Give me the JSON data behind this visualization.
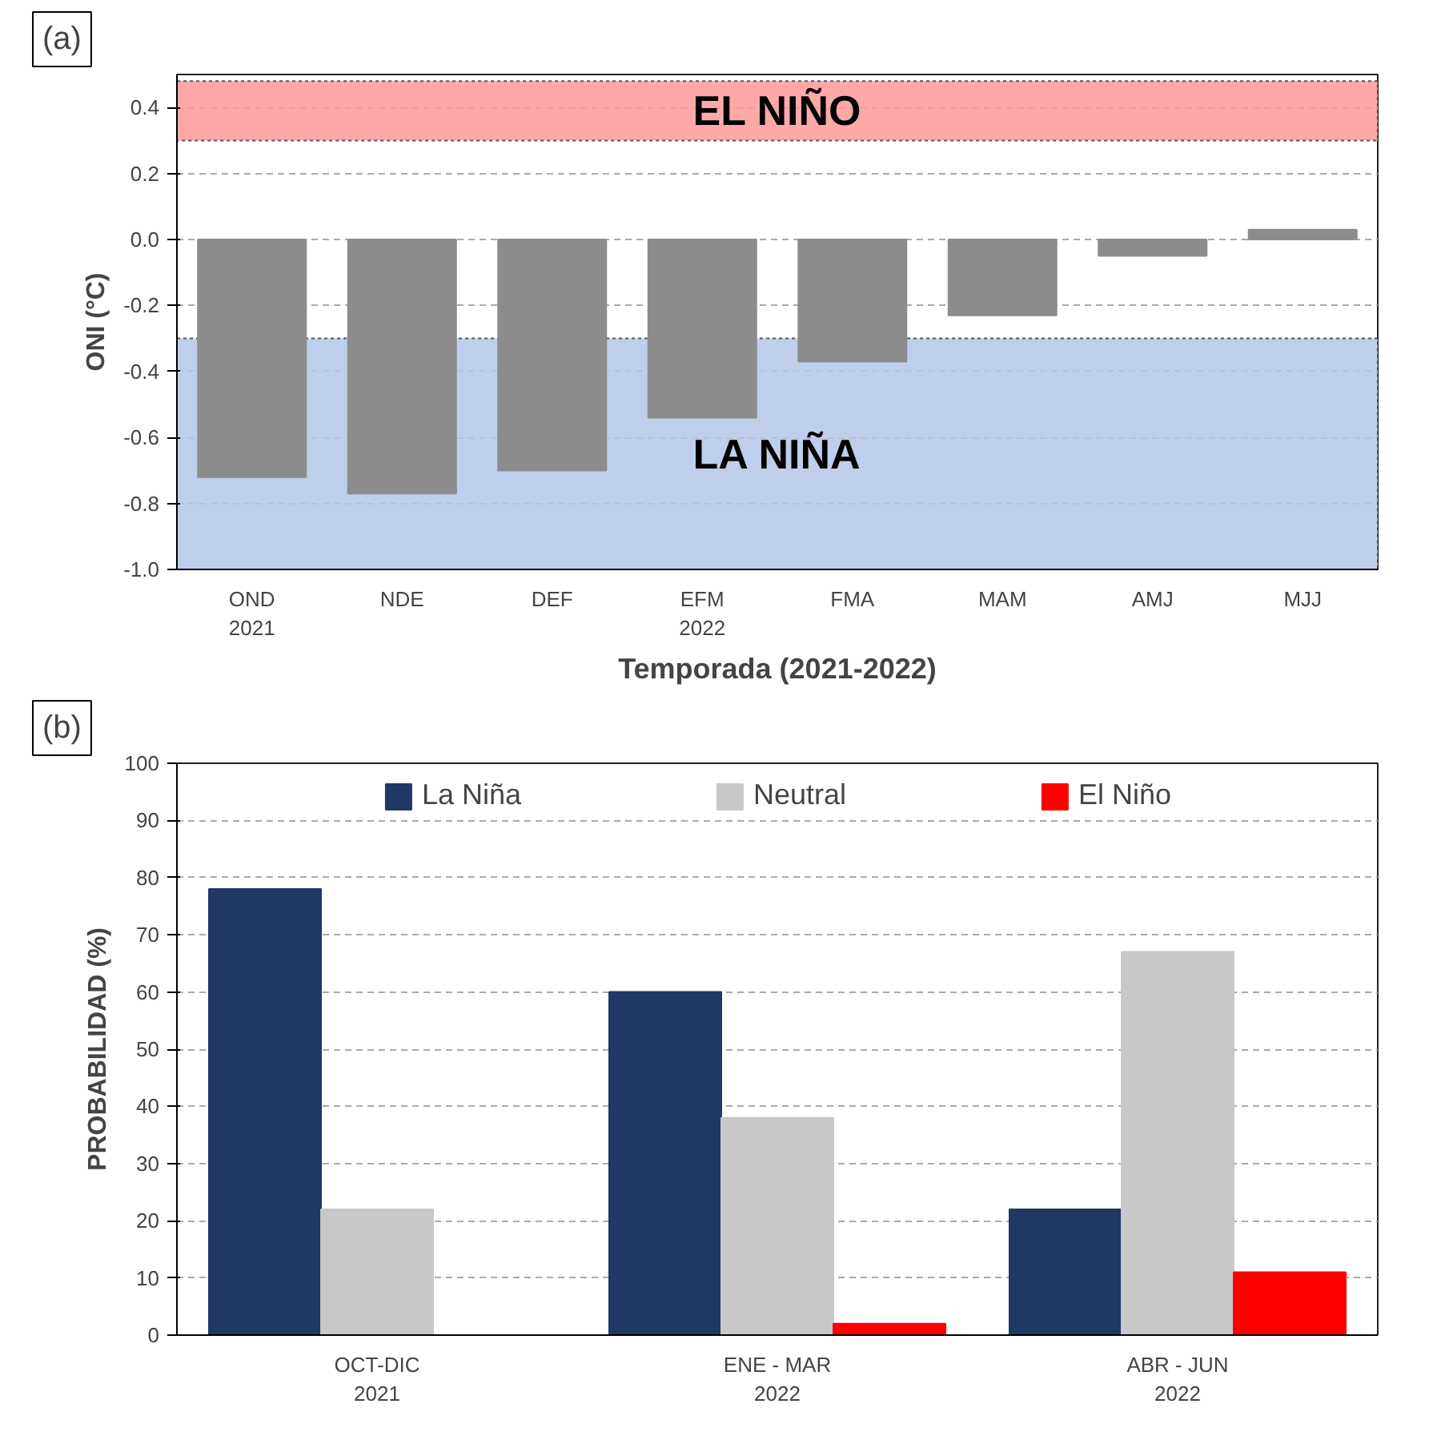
{
  "chart_data": [
    {
      "type": "bar",
      "annotations": [
        "(a)"
      ],
      "xlabel": "Temporada (2021-2022)",
      "ylabel": "ONI (°C)",
      "categories": [
        "OND\n2021",
        "NDE",
        "DEF",
        "EFM\n2022",
        "FMA",
        "MAM",
        "AMJ",
        "MJJ"
      ],
      "series": [
        {
          "color": "#8c8c8c",
          "values": [
            -0.72,
            -0.77,
            -0.7,
            -0.54,
            -0.37,
            -0.23,
            -0.05,
            0.03
          ]
        }
      ],
      "ylim": [
        -1.0,
        0.5
      ],
      "yticks": [
        {
          "value": -1.0,
          "label": "-1.0"
        },
        {
          "value": -0.8,
          "label": "-0.8"
        },
        {
          "value": -0.6,
          "label": "-0.6"
        },
        {
          "value": -0.4,
          "label": "-0.4"
        },
        {
          "value": -0.2,
          "label": "-0.2"
        },
        {
          "value": 0,
          "label": "0.0"
        },
        {
          "value": 0.2,
          "label": "0.2"
        },
        {
          "value": 0.4,
          "label": "0.4"
        }
      ],
      "bands": [
        {
          "axis": "y",
          "from": 0.3,
          "to": 0.48,
          "label": "EL NIÑO",
          "color": "#ff9999"
        },
        {
          "axis": "y",
          "from": -1.0,
          "to": -0.3,
          "label": "LA NIÑA",
          "color": "#b4c7e7"
        }
      ],
      "grid": "y",
      "legend": false
    },
    {
      "type": "bar",
      "annotations": [
        "(b)"
      ],
      "ylabel": "PROBABILIDAD (%)",
      "categories": [
        "OCT-DIC\n2021",
        "ENE - MAR\n2022",
        "ABR - JUN\n2022"
      ],
      "series": [
        {
          "name": "La Niña",
          "color": "#1f3864",
          "values": [
            78,
            60,
            22
          ]
        },
        {
          "name": "Neutral",
          "color": "#c8c8c8",
          "values": [
            22,
            38,
            67
          ]
        },
        {
          "name": "El Niño",
          "color": "#ff0000",
          "values": [
            0,
            2,
            11
          ]
        }
      ],
      "ylim": [
        0,
        100
      ],
      "yticks": [
        0,
        10,
        20,
        30,
        40,
        50,
        60,
        70,
        80,
        90,
        100
      ],
      "grid": "y",
      "legend": "top"
    }
  ]
}
